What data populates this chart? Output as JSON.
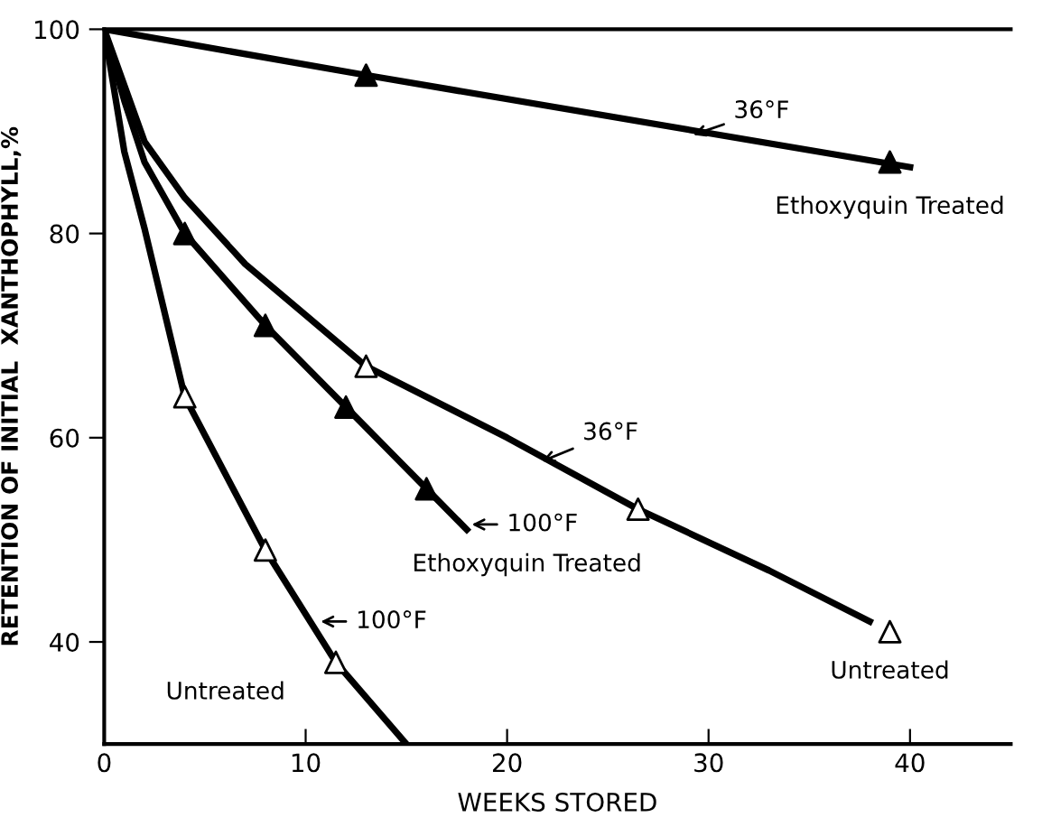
{
  "chart_data": {
    "type": "line",
    "xlabel": "WEEKS STORED",
    "ylabel": "RETENTION OF INITIAL  XANTHOPHYLL,%",
    "xlim": [
      0,
      45
    ],
    "ylim": [
      30,
      100
    ],
    "xticks": [
      0,
      10,
      20,
      30,
      40
    ],
    "yticks": [
      40,
      60,
      80,
      100
    ],
    "grid": false,
    "legend": false,
    "series": [
      {
        "color": "#000000",
        "marker": "none",
        "x": [
          0,
          13,
          40
        ],
        "values": [
          100,
          95.5,
          86.5
        ]
      },
      {
        "type": "scatter",
        "color": "#000000",
        "marker": "triangle",
        "x": [
          13,
          39
        ],
        "values": [
          95.5,
          87
        ]
      },
      {
        "color": "#000000",
        "marker": "none",
        "x": [
          0,
          2,
          4,
          7,
          10,
          13,
          20,
          26.5,
          33,
          38
        ],
        "values": [
          100,
          89,
          83.5,
          77,
          72,
          67,
          60,
          53,
          47,
          42
        ]
      },
      {
        "type": "scatter",
        "color": "#ffffff",
        "marker": "triangle",
        "x": [
          13,
          26.5,
          39
        ],
        "values": [
          67,
          53,
          41
        ]
      },
      {
        "color": "#000000",
        "marker": "none",
        "x": [
          0,
          1,
          2,
          4,
          8,
          12,
          16,
          18
        ],
        "values": [
          100,
          93,
          87,
          80,
          71,
          63,
          55,
          51
        ]
      },
      {
        "type": "scatter",
        "color": "#000000",
        "marker": "triangle",
        "x": [
          4,
          8,
          12,
          16
        ],
        "values": [
          80,
          71,
          63,
          55
        ]
      },
      {
        "color": "#000000",
        "marker": "none",
        "x": [
          0,
          1,
          2,
          4,
          8,
          11.5,
          15
        ],
        "values": [
          100,
          88,
          80.5,
          64,
          49,
          38,
          30
        ]
      },
      {
        "type": "scatter",
        "color": "#ffffff",
        "marker": "triangle",
        "x": [
          4,
          8,
          11.5
        ],
        "values": [
          64,
          49,
          38
        ]
      }
    ],
    "annotations": [
      {
        "text": "36°F",
        "x": 29,
        "y": 89.5
      },
      {
        "text": "Ethoxyquin Treated",
        "x": 39,
        "y": 87
      },
      {
        "text": "36°F",
        "x": 21.5,
        "y": 57.5
      },
      {
        "text": "100°F",
        "x": 18,
        "y": 51.5
      },
      {
        "text": "Ethoxyquin Treated",
        "x": 18,
        "y": 51
      },
      {
        "text": "100°F",
        "x": 10.5,
        "y": 42
      },
      {
        "text": "Untreated",
        "x": 11,
        "y": 37
      },
      {
        "text": "Untreated",
        "x": 39,
        "y": 41
      }
    ]
  }
}
